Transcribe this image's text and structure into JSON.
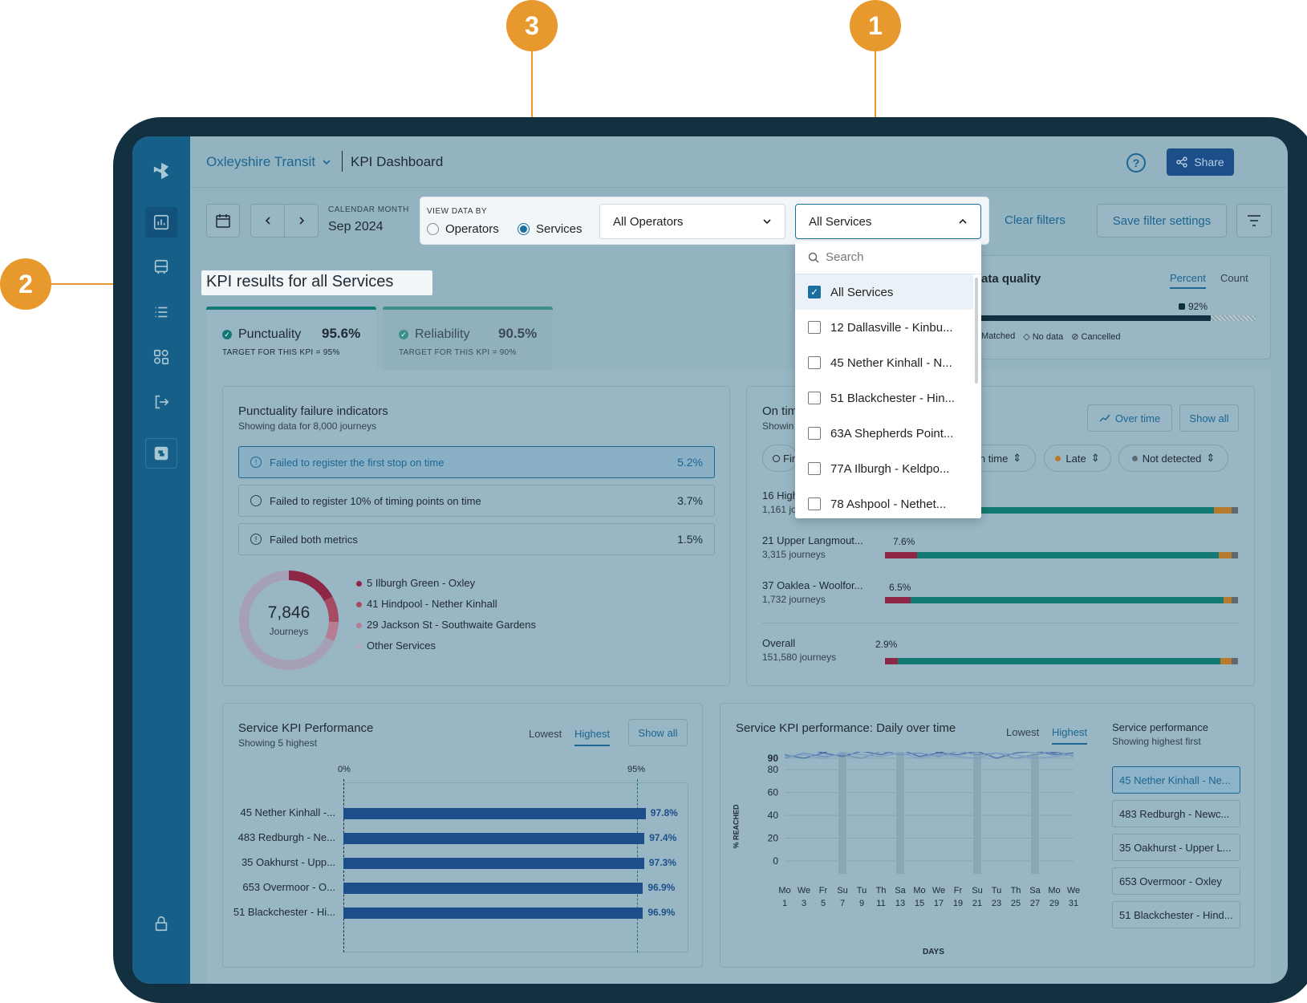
{
  "callouts": [
    "1",
    "2",
    "3"
  ],
  "header": {
    "org": "Oxleyshire Transit",
    "title": "KPI Dashboard",
    "share": "Share"
  },
  "calendar": {
    "label": "CALENDAR MONTH",
    "value": "Sep 2024"
  },
  "view_by": {
    "label": "VIEW DATA BY",
    "opt1": "Operators",
    "opt2": "Services",
    "selected": "Services"
  },
  "operators_select": "All Operators",
  "services_select": "All Services",
  "clear_filters": "Clear filters",
  "save_filters": "Save filter settings",
  "dropdown": {
    "search_placeholder": "Search",
    "items": [
      {
        "label": "All Services",
        "checked": true
      },
      {
        "label": "12 Dallasville - Kinbu...",
        "checked": false
      },
      {
        "label": "45 Nether Kinhall - N...",
        "checked": false
      },
      {
        "label": "51 Blackchester - Hin...",
        "checked": false
      },
      {
        "label": "63A Shepherds Point...",
        "checked": false
      },
      {
        "label": "77A Ilburgh - Keldpo...",
        "checked": false
      },
      {
        "label": "78 Ashpool - Nethet...",
        "checked": false
      }
    ]
  },
  "page_title": "KPI results for all Services",
  "kpi_tabs": [
    {
      "name": "Punctuality",
      "value": "95.6%",
      "target": "TARGET FOR THIS KPI = 95%"
    },
    {
      "name": "Reliability",
      "value": "90.5%",
      "target": "TARGET FOR THIS KPI = 90%"
    }
  ],
  "data_quality": {
    "title": "ata quality",
    "tab1": "Percent",
    "tab2": "Count",
    "value": "92%",
    "legend": [
      "Matched",
      "No data",
      "Cancelled"
    ]
  },
  "failure": {
    "title": "Punctuality failure indicators",
    "subtitle": "Showing data for 8,000 journeys",
    "indicators": [
      {
        "label": "Failed to register the first stop on time",
        "value": "5.2%"
      },
      {
        "label": "Failed to register 10% of timing points on time",
        "value": "3.7%"
      },
      {
        "label": "Failed both metrics",
        "value": "1.5%"
      }
    ],
    "donut_value": "7,846",
    "donut_label": "Journeys",
    "legend": [
      "5 Ilburgh Green - Oxley",
      "41 Hindpool - Nether Kinhall",
      "29 Jackson St - Southwaite Gardens",
      "Other Services"
    ]
  },
  "ontime": {
    "title": "On tim",
    "subtitle": "Showin",
    "btn_over_time": "Over time",
    "btn_show_all": "Show all",
    "filters": [
      "Fir",
      "On time",
      "Late",
      "Not detected"
    ],
    "rows": [
      {
        "name": "16 High",
        "journeys": "1,161 jou",
        "pct": ""
      },
      {
        "name": "21 Upper Langmout...",
        "journeys": "3,315 journeys",
        "pct": "7.6%"
      },
      {
        "name": "37 Oaklea - Woolfor...",
        "journeys": "1,732 journeys",
        "pct": "6.5%"
      }
    ],
    "overall": {
      "name": "Overall",
      "journeys": "151,580 journeys",
      "pct": "2.9%"
    }
  },
  "service_perf": {
    "title": "Service KPI Performance",
    "subtitle": "Showing 5 highest",
    "tab_lowest": "Lowest",
    "tab_highest": "Highest",
    "show_all": "Show all",
    "axis0": "0%",
    "target": "95%",
    "bars": [
      {
        "name": "45 Nether Kinhall -...",
        "value": "97.8%"
      },
      {
        "name": "483 Redburgh - Ne...",
        "value": "97.4%"
      },
      {
        "name": "35 Oakhurst - Upp...",
        "value": "97.3%"
      },
      {
        "name": "653 Overmoor - O...",
        "value": "96.9%"
      },
      {
        "name": "51 Blackchester - Hi...",
        "value": "96.9%"
      }
    ]
  },
  "daily": {
    "title": "Service KPI performance: Daily over time",
    "tab_lowest": "Lowest",
    "tab_highest": "Highest",
    "ylabel": "% REACHED",
    "xlabel": "DAYS",
    "yticks": [
      "90",
      "80",
      "60",
      "40",
      "20",
      "0"
    ],
    "days": [
      "Mo",
      "We",
      "Fr",
      "Su",
      "Tu",
      "Th",
      "Sa",
      "Mo",
      "We",
      "Fr",
      "Su",
      "Tu",
      "Th",
      "Sa",
      "Mo",
      "We"
    ],
    "dates": [
      "1",
      "3",
      "5",
      "7",
      "9",
      "11",
      "13",
      "15",
      "17",
      "19",
      "21",
      "23",
      "25",
      "27",
      "29",
      "31"
    ],
    "side_title": "Service performance",
    "side_sub": "Showing highest first",
    "services": [
      "45 Nether Kinhall - Ne...",
      "483 Redburgh - Newc...",
      "35 Oakhurst - Upper L...",
      "653 Overmoor - Oxley",
      "51 Blackchester - Hind..."
    ]
  },
  "chart_data": {
    "type": "bar",
    "categories": [
      "45 Nether Kinhall -...",
      "483 Redburgh - Ne...",
      "35 Oakhurst - Upp...",
      "653 Overmoor - O...",
      "51 Blackchester - Hi..."
    ],
    "values": [
      97.8,
      97.4,
      97.3,
      96.9,
      96.9
    ],
    "title": "Service KPI Performance",
    "xlim": [
      0,
      100
    ]
  }
}
